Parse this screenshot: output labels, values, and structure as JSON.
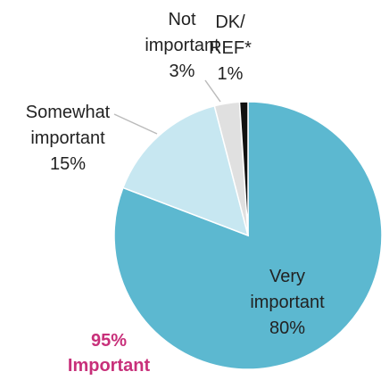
{
  "chart_data": {
    "type": "pie",
    "categories": [
      "Very\nimportant",
      "Somewhat\nimportant",
      "Not\nimportant",
      "DK/\nREF*"
    ],
    "values": [
      80,
      15,
      3,
      1
    ],
    "value_labels": [
      "80%",
      "15%",
      "3%",
      "1%"
    ],
    "colors": [
      "#5cb8d0",
      "#c7e7f1",
      "#e0e0e0",
      "#111111"
    ],
    "annotation": "95%\nImportant"
  }
}
